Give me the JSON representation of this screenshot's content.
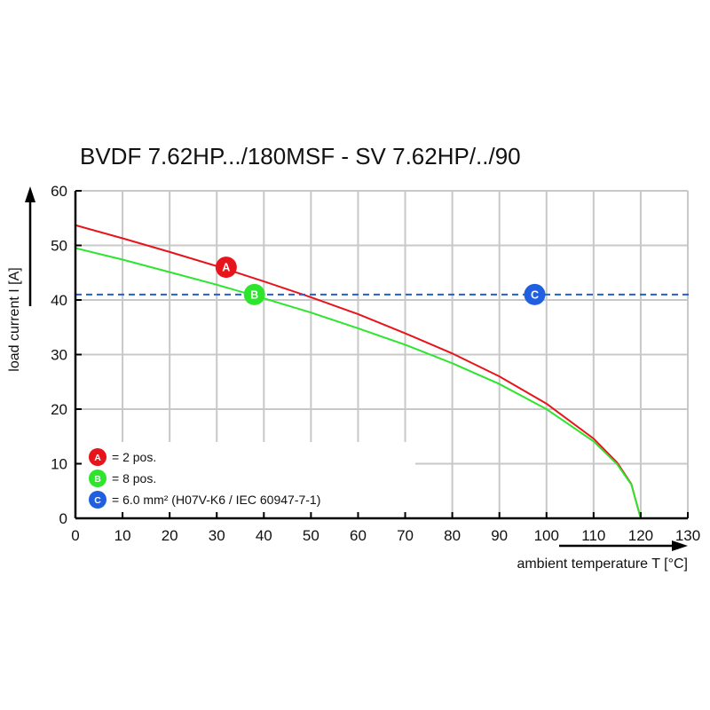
{
  "chart_data": {
    "type": "line",
    "title": "BVDF 7.62HP.../180MSF - SV 7.62HP/../90",
    "xlabel": "ambient temperature T [°C]",
    "ylabel": "load current I [A]",
    "xlim": [
      0,
      130
    ],
    "ylim": [
      0,
      60
    ],
    "xticks": [
      "0",
      "10",
      "20",
      "30",
      "40",
      "50",
      "60",
      "70",
      "80",
      "90",
      "100",
      "110",
      "120",
      "130"
    ],
    "yticks": [
      "0",
      "10",
      "20",
      "30",
      "40",
      "50",
      "60"
    ],
    "grid": true,
    "series": [
      {
        "name": "A",
        "color": "#e8141b",
        "x": [
          0,
          10,
          20,
          30,
          40,
          50,
          60,
          70,
          80,
          90,
          100,
          110,
          115,
          118,
          120
        ],
        "y": [
          53.7,
          51.3,
          48.8,
          46.2,
          43.4,
          40.5,
          37.4,
          33.9,
          30.2,
          26.0,
          21.0,
          14.6,
          10.2,
          6.3,
          0
        ]
      },
      {
        "name": "B",
        "color": "#2ee52e",
        "x": [
          0,
          10,
          20,
          30,
          40,
          50,
          60,
          70,
          80,
          90,
          100,
          110,
          115,
          118,
          120
        ],
        "y": [
          49.5,
          47.4,
          45.1,
          42.8,
          40.3,
          37.7,
          34.8,
          31.8,
          28.4,
          24.6,
          20.0,
          14.1,
          9.9,
          6.2,
          0
        ]
      },
      {
        "name": "C",
        "color": "#1f5fe0",
        "dashed": true,
        "x": [
          0,
          130
        ],
        "y": [
          41,
          41
        ]
      }
    ],
    "markers": [
      {
        "label": "A",
        "x": 32,
        "y": 46,
        "color": "#e8141b"
      },
      {
        "label": "B",
        "x": 38,
        "y": 41,
        "color": "#2ee52e"
      },
      {
        "label": "C",
        "x": 97.5,
        "y": 41,
        "color": "#1f5fe0"
      }
    ],
    "legend": {
      "placement": "bottom-left",
      "entries": [
        {
          "label": "A",
          "text": "= 2 pos.",
          "color": "#e8141b"
        },
        {
          "label": "B",
          "text": "= 8 pos.",
          "color": "#2ee52e"
        },
        {
          "label": "C",
          "text": "= 6.0 mm² (H07V-K6 / IEC 60947-7-1)",
          "color": "#1f5fe0"
        }
      ]
    }
  }
}
